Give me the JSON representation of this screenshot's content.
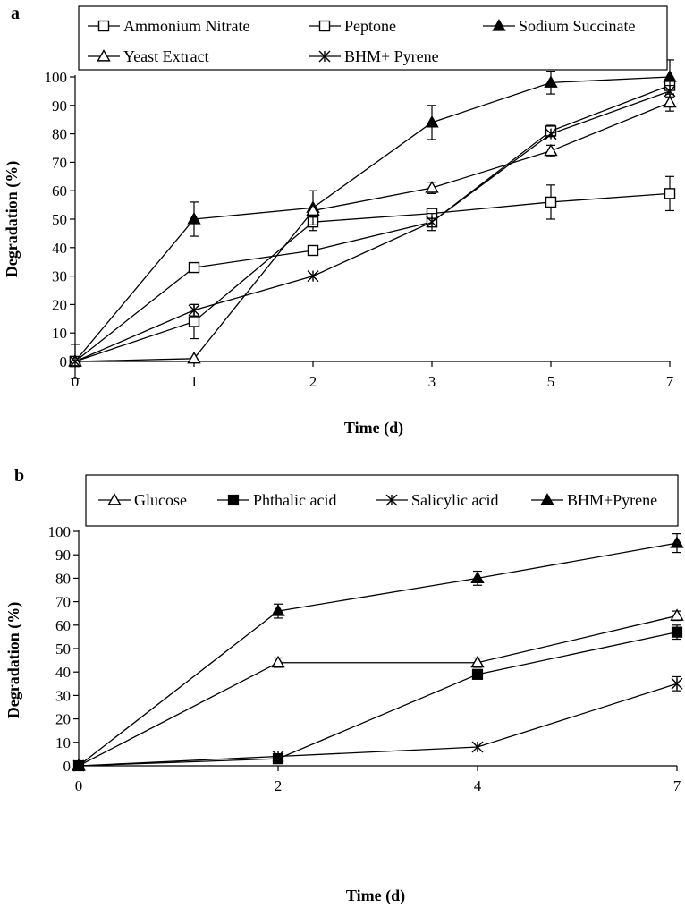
{
  "chart_data": [
    {
      "panel_label": "a",
      "type": "line",
      "xlabel": "Time (d)",
      "ylabel": "Degradation (%)",
      "categories": [
        "0",
        "1",
        "2",
        "3",
        "5",
        "7"
      ],
      "ylim": [
        0,
        100
      ],
      "yticks": [
        0,
        10,
        20,
        30,
        40,
        50,
        60,
        70,
        80,
        90,
        100
      ],
      "legend": "top",
      "series": [
        {
          "name": "Ammonium Nitrate",
          "marker": "square-open",
          "values": [
            0,
            33,
            39,
            49,
            81,
            97
          ],
          "errors": [
            0,
            0,
            0,
            0,
            2,
            0
          ]
        },
        {
          "name": "Peptone",
          "marker": "square-open",
          "values": [
            0,
            14,
            49,
            52,
            56,
            59
          ],
          "errors": [
            0,
            6,
            3,
            0,
            6,
            6
          ]
        },
        {
          "name": "Sodium Succinate",
          "marker": "triangle-filled",
          "values": [
            0,
            50,
            54,
            84,
            98,
            100
          ],
          "errors": [
            6,
            6,
            6,
            6,
            4,
            6
          ]
        },
        {
          "name": "Yeast Extract",
          "marker": "triangle-open",
          "values": [
            0,
            1,
            53,
            61,
            74,
            91
          ],
          "errors": [
            0,
            0,
            0,
            2,
            2,
            3
          ]
        },
        {
          "name": "BHM+ Pyrene",
          "marker": "asterisk",
          "values": [
            0,
            18,
            30,
            49,
            80,
            95
          ],
          "errors": [
            0,
            2,
            0,
            3,
            0,
            2
          ]
        }
      ]
    },
    {
      "panel_label": "b",
      "type": "line",
      "xlabel": "Time (d)",
      "ylabel": "Degradation (%)",
      "categories": [
        "0",
        "2",
        "4",
        "7"
      ],
      "ylim": [
        0,
        100
      ],
      "yticks": [
        0,
        10,
        20,
        30,
        40,
        50,
        60,
        70,
        80,
        90,
        100
      ],
      "legend": "top",
      "series": [
        {
          "name": "Glucose",
          "marker": "triangle-open",
          "values": [
            0,
            44,
            44,
            64
          ],
          "errors": [
            0,
            2,
            2,
            2
          ]
        },
        {
          "name": "Phthalic acid",
          "marker": "square-filled",
          "values": [
            0,
            3,
            39,
            57
          ],
          "errors": [
            0,
            0,
            2,
            3
          ]
        },
        {
          "name": "Salicylic acid",
          "marker": "asterisk",
          "values": [
            0,
            4,
            8,
            35
          ],
          "errors": [
            0,
            0,
            0,
            3
          ]
        },
        {
          "name": "BHM+Pyrene",
          "marker": "triangle-filled",
          "values": [
            0,
            66,
            80,
            95
          ],
          "errors": [
            0,
            3,
            3,
            4
          ]
        }
      ]
    }
  ]
}
